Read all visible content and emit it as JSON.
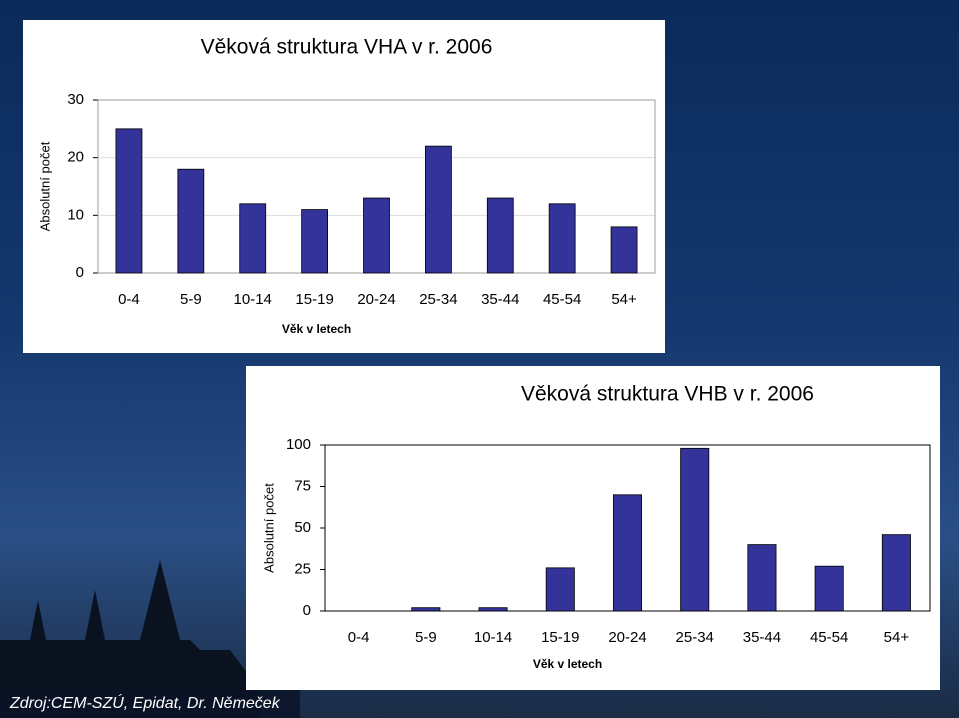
{
  "chart_data": [
    {
      "type": "bar",
      "title": "Věková struktura VHA v r. 2006",
      "x_label": "Věk v letech",
      "y_label": "Absolutní počet",
      "categories": [
        "0-4",
        "5-9",
        "10-14",
        "15-19",
        "20-24",
        "25-34",
        "35-44",
        "45-54",
        "54+"
      ],
      "values": [
        25,
        18,
        12,
        11,
        13,
        22,
        13,
        12,
        8
      ],
      "color": "#333399",
      "ylim": [
        0,
        30
      ],
      "yticks": [
        0,
        10,
        20,
        30
      ],
      "grid": true
    },
    {
      "type": "bar",
      "title": "Věková struktura VHB v r. 2006",
      "x_label": "Věk v letech",
      "y_label": "Absolutní počet",
      "categories": [
        "0-4",
        "5-9",
        "10-14",
        "15-19",
        "20-24",
        "25-34",
        "35-44",
        "45-54",
        "54+"
      ],
      "values": [
        0,
        2,
        2,
        26,
        70,
        98,
        40,
        27,
        46
      ],
      "color": "#333399",
      "ylim": [
        0,
        100
      ],
      "yticks": [
        0,
        25,
        50,
        75,
        100
      ],
      "grid": false
    }
  ],
  "footer": {
    "source": "Zdroj:CEM-SZÚ, Epidat, Dr. Němeček"
  }
}
